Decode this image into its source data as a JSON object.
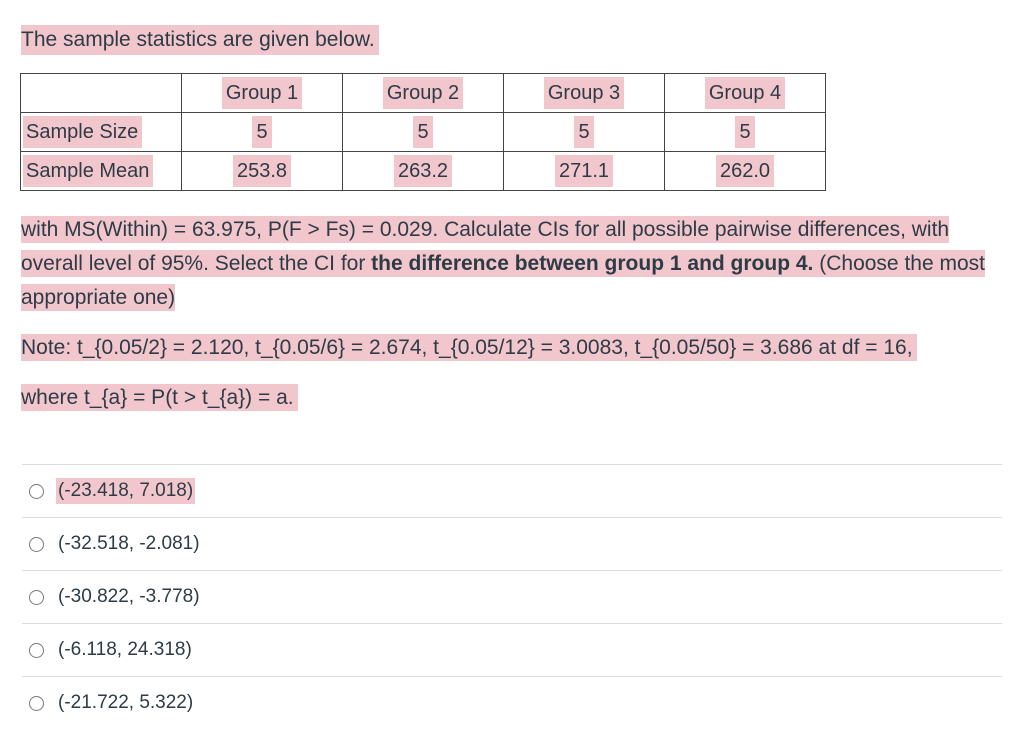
{
  "intro": "The sample statistics are given below.",
  "table": {
    "headers": [
      "",
      "Group 1",
      "Group 2",
      "Group 3",
      "Group 4"
    ],
    "rows": [
      {
        "label": "Sample Size",
        "values": [
          "5",
          "5",
          "5",
          "5"
        ]
      },
      {
        "label": "Sample Mean",
        "values": [
          "253.8",
          "263.2",
          "271.1",
          "262.0"
        ]
      }
    ]
  },
  "question": {
    "part1": "with MS(Within) = 63.975, P(F > Fs) = 0.029. Calculate CIs for all possible pairwise differences, with overall level of 95%. Select the CI for ",
    "bold": "the difference between group 1 and group 4.",
    "part2": " (Choose the most appropriate one)"
  },
  "note": {
    "line1": "Note: t_{0.05/2} = 2.120, t_{0.05/6} = 2.674, t_{0.05/12} = 3.0083, t_{0.05/50} = 3.686 at df = 16,",
    "line2": "where t_{a} = P(t > t_{a}) = a."
  },
  "answers": [
    "(-23.418, 7.018)",
    "(-32.518, -2.081)",
    "(-30.822, -3.778)",
    "(-6.118, 24.318)",
    "(-21.722, 5.322)"
  ],
  "colors": {
    "highlight": "#f2c6cd",
    "text": "#2d3b45"
  }
}
